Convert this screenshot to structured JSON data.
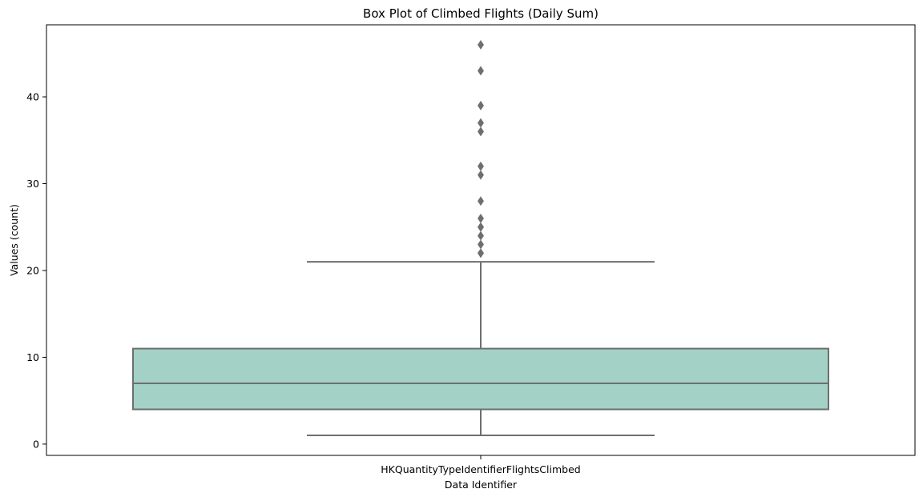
{
  "chart_data": {
    "type": "box",
    "title": "Box Plot of Climbed Flights (Daily Sum)",
    "xlabel": "Data Identifier",
    "ylabel": "Values (count)",
    "ylim": [
      -1.3,
      48.3
    ],
    "yticks": [
      0,
      10,
      20,
      30,
      40
    ],
    "grid": false,
    "legend": "none",
    "categories": [
      "HKQuantityTypeIdentifierFlightsClimbed"
    ],
    "boxes": [
      {
        "category": "HKQuantityTypeIdentifierFlightsClimbed",
        "whisker_low": 1,
        "q1": 4,
        "median": 7,
        "q3": 11,
        "whisker_high": 21,
        "outliers": [
          22,
          22,
          23,
          24,
          25,
          25,
          26,
          28,
          31,
          32,
          36,
          37,
          39,
          43,
          46
        ]
      }
    ],
    "colors": {
      "box_fill": "#a3d1c6",
      "line": "#6e6e6e",
      "outlier": "#6e6e6e",
      "frame": "#000000"
    }
  }
}
